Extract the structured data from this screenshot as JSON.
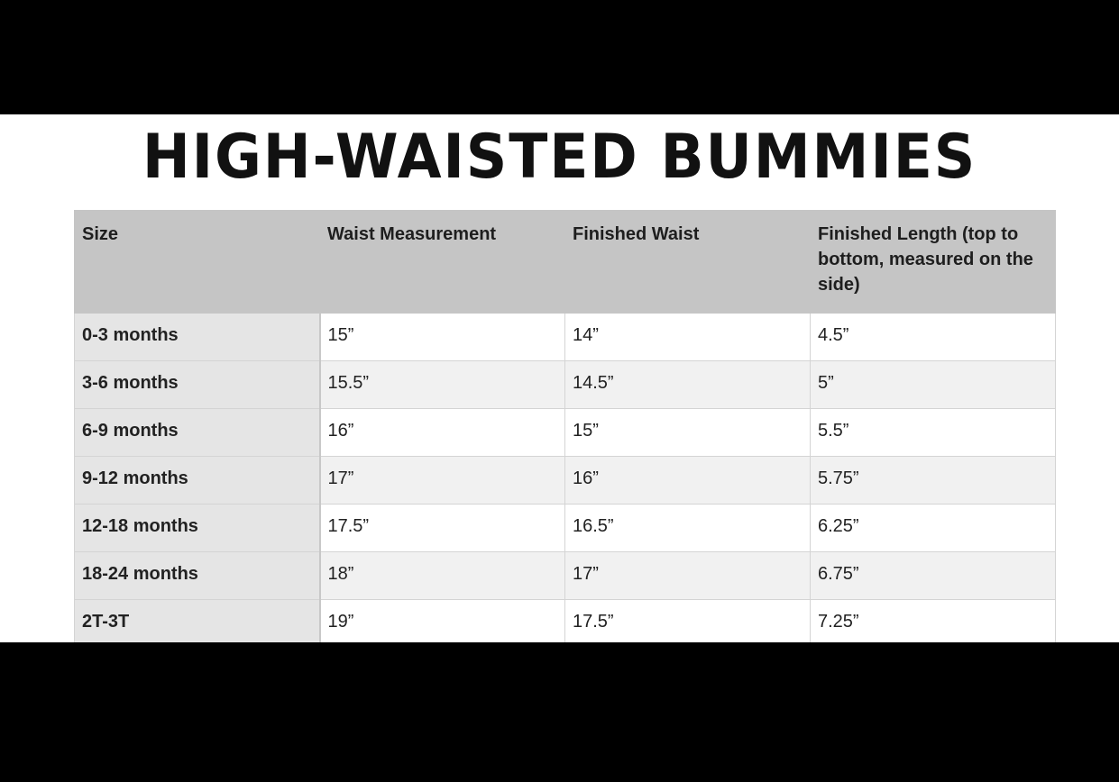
{
  "title": "HIGH-WAISTED BUMMIES",
  "table": {
    "headers": [
      "Size",
      "Waist Measurement",
      "Finished Waist",
      "Finished Length (top to bottom, measured on the side)"
    ],
    "rows": [
      [
        "0-3 months",
        "15”",
        "14”",
        "4.5”"
      ],
      [
        "3-6 months",
        "15.5”",
        "14.5”",
        "5”"
      ],
      [
        "6-9 months",
        "16”",
        "15”",
        "5.5”"
      ],
      [
        "9-12 months",
        "17”",
        "16”",
        "5.75”"
      ],
      [
        "12-18 months",
        "17.5”",
        "16.5”",
        "6.25”"
      ],
      [
        "18-24 months",
        "18”",
        "17”",
        "6.75”"
      ],
      [
        "2T-3T",
        "19”",
        "17.5”",
        "7.25”"
      ]
    ]
  }
}
